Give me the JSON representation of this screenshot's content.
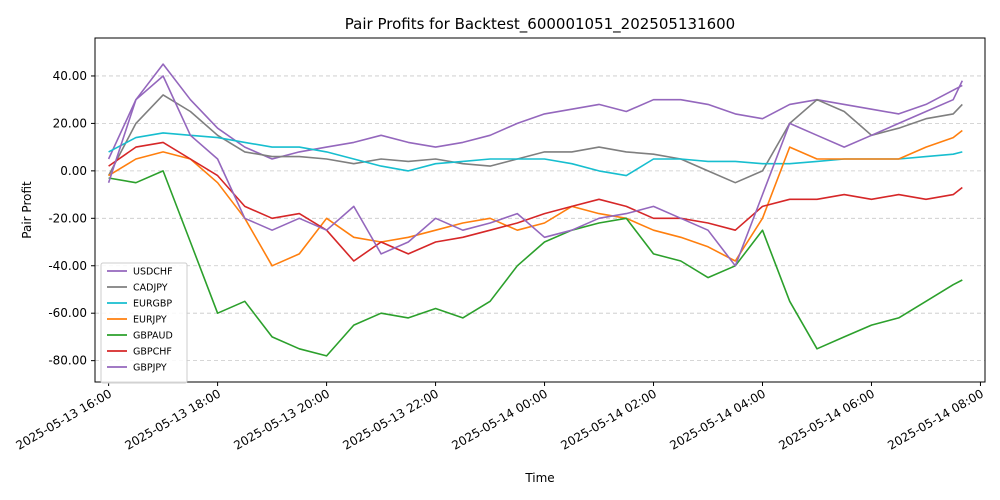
{
  "chart_data": {
    "type": "line",
    "title": "Pair Profits for Backtest_600001051_202505131600",
    "xlabel": "Time",
    "ylabel": "Pair Profit",
    "xlim": [
      "2025-05-13 15:45",
      "2025-05-14 08:05"
    ],
    "ylim": [
      -89,
      56
    ],
    "grid": "horizontal dashed",
    "legend_position": "lower-left",
    "x_ticks": [
      "2025-05-13 16:00",
      "2025-05-13 18:00",
      "2025-05-13 20:00",
      "2025-05-13 22:00",
      "2025-05-14 00:00",
      "2025-05-14 02:00",
      "2025-05-14 04:00",
      "2025-05-14 06:00",
      "2025-05-14 08:00"
    ],
    "y_ticks": [
      "-80.00",
      "-60.00",
      "-40.00",
      "-20.00",
      "0.00",
      "20.00",
      "40.00"
    ],
    "x": [
      "2025-05-13 16:00",
      "2025-05-13 16:30",
      "2025-05-13 17:00",
      "2025-05-13 17:30",
      "2025-05-13 18:00",
      "2025-05-13 18:30",
      "2025-05-13 19:00",
      "2025-05-13 19:30",
      "2025-05-13 20:00",
      "2025-05-13 20:30",
      "2025-05-13 21:00",
      "2025-05-13 21:30",
      "2025-05-13 22:00",
      "2025-05-13 22:30",
      "2025-05-13 23:00",
      "2025-05-13 23:30",
      "2025-05-14 00:00",
      "2025-05-14 00:30",
      "2025-05-14 01:00",
      "2025-05-14 01:30",
      "2025-05-14 02:00",
      "2025-05-14 02:30",
      "2025-05-14 03:00",
      "2025-05-14 03:30",
      "2025-05-14 04:00",
      "2025-05-14 04:30",
      "2025-05-14 05:00",
      "2025-05-14 05:30",
      "2025-05-14 06:00",
      "2025-05-14 06:30",
      "2025-05-14 07:00",
      "2025-05-14 07:30",
      "2025-05-14 07:40"
    ],
    "series": [
      {
        "name": "USDCHF",
        "color": "#9467bd",
        "values": [
          5,
          30,
          45,
          30,
          18,
          10,
          5,
          8,
          10,
          12,
          15,
          12,
          10,
          12,
          15,
          20,
          24,
          26,
          28,
          25,
          30,
          30,
          28,
          24,
          22,
          28,
          30,
          28,
          26,
          24,
          28,
          34,
          36
        ]
      },
      {
        "name": "CADJPY",
        "color": "#7f7f7f",
        "values": [
          -2,
          20,
          32,
          25,
          15,
          8,
          6,
          6,
          5,
          3,
          5,
          4,
          5,
          3,
          2,
          5,
          8,
          8,
          10,
          8,
          7,
          5,
          0,
          -5,
          0,
          20,
          30,
          25,
          15,
          18,
          22,
          24,
          28
        ]
      },
      {
        "name": "EURGBP",
        "color": "#17becf",
        "values": [
          8,
          14,
          16,
          15,
          14,
          12,
          10,
          10,
          8,
          5,
          2,
          0,
          3,
          4,
          5,
          5,
          5,
          3,
          0,
          -2,
          5,
          5,
          4,
          4,
          3,
          3,
          4,
          5,
          5,
          5,
          6,
          7,
          8
        ]
      },
      {
        "name": "EURJPY",
        "color": "#ff7f0e",
        "values": [
          -2,
          5,
          8,
          5,
          -5,
          -20,
          -40,
          -35,
          -20,
          -28,
          -30,
          -28,
          -25,
          -22,
          -20,
          -25,
          -22,
          -15,
          -18,
          -20,
          -25,
          -28,
          -32,
          -38,
          -20,
          10,
          5,
          5,
          5,
          5,
          10,
          14,
          17
        ]
      },
      {
        "name": "GBPAUD",
        "color": "#2ca02c",
        "values": [
          -3,
          -5,
          0,
          -30,
          -60,
          -55,
          -70,
          -75,
          -78,
          -65,
          -60,
          -62,
          -58,
          -62,
          -55,
          -40,
          -30,
          -25,
          -22,
          -20,
          -35,
          -38,
          -45,
          -40,
          -25,
          -55,
          -75,
          -70,
          -65,
          -62,
          -55,
          -48,
          -46
        ]
      },
      {
        "name": "GBPCHF",
        "color": "#d62728",
        "values": [
          2,
          10,
          12,
          5,
          -2,
          -15,
          -20,
          -18,
          -25,
          -38,
          -30,
          -35,
          -30,
          -28,
          -25,
          -22,
          -18,
          -15,
          -12,
          -15,
          -20,
          -20,
          -22,
          -25,
          -15,
          -12,
          -12,
          -10,
          -12,
          -10,
          -12,
          -10,
          -7
        ]
      },
      {
        "name": "GBPJPY",
        "color": "#9467bd",
        "values": [
          -5,
          30,
          40,
          15,
          5,
          -20,
          -25,
          -20,
          -25,
          -15,
          -35,
          -30,
          -20,
          -25,
          -22,
          -18,
          -28,
          -25,
          -20,
          -18,
          -15,
          -20,
          -25,
          -40,
          -10,
          20,
          15,
          10,
          15,
          20,
          25,
          30,
          38
        ]
      }
    ]
  }
}
